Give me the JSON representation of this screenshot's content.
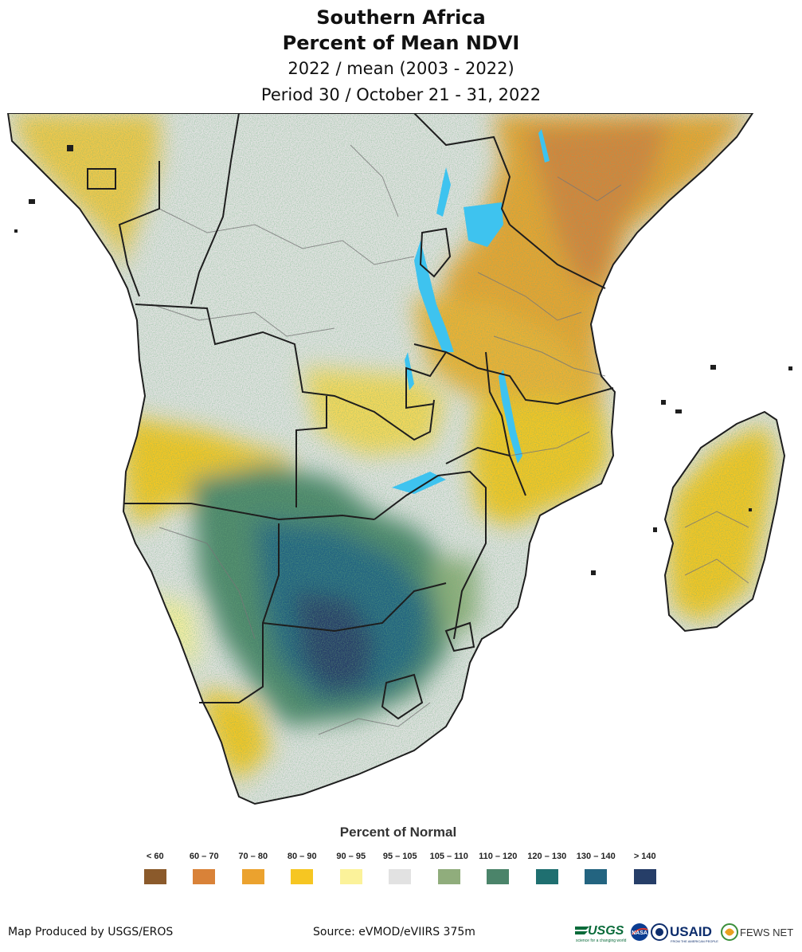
{
  "header": {
    "title_line1": "Southern Africa",
    "title_line2": "Percent of Mean NDVI",
    "subtitle_line1": "2022 / mean (2003 - 2022)",
    "subtitle_line2": "Period 30 / October 21 - 31, 2022"
  },
  "legend": {
    "title": "Percent of Normal",
    "items": [
      {
        "label": "< 60",
        "color": "#8b5a2b"
      },
      {
        "label": "60 – 70",
        "color": "#d98238"
      },
      {
        "label": "70 – 80",
        "color": "#eba22e"
      },
      {
        "label": "80 – 90",
        "color": "#f6c622"
      },
      {
        "label": "90 – 95",
        "color": "#fbf29a"
      },
      {
        "label": "95 – 105",
        "color": "#e2e2e2"
      },
      {
        "label": "105 – 110",
        "color": "#90ad7c"
      },
      {
        "label": "110 – 120",
        "color": "#4b846a"
      },
      {
        "label": "120 – 130",
        "color": "#1f6f70"
      },
      {
        "label": "130 – 140",
        "color": "#236480"
      },
      {
        "label": "> 140",
        "color": "#263e68"
      }
    ]
  },
  "footer": {
    "credit": "Map Produced by USGS/EROS",
    "source": "Source: eVMOD/eVIIRS 375m",
    "logos": {
      "usgs": "USGS",
      "usgs_tagline": "science for a changing world",
      "nasa": "NASA",
      "usaid": "USAID",
      "usaid_tagline": "FROM THE AMERICAN PEOPLE",
      "fewsnet": "FEWS NET"
    }
  },
  "colors": {
    "water": "#3ec3ef",
    "border": "#1e1e1e",
    "admin": "#777777"
  }
}
